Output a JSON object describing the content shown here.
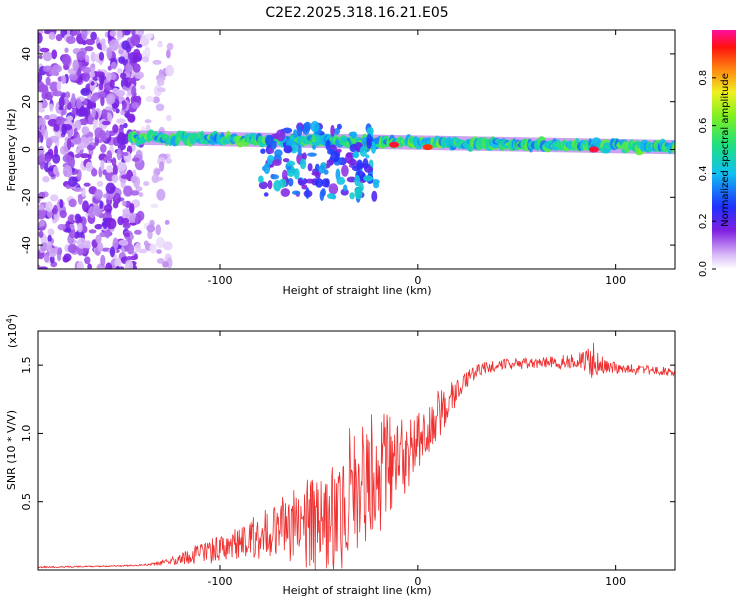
{
  "title": "C2E2.2025.318.16.21.E05",
  "colors": {
    "line": "#ee3030",
    "frame": "#000000",
    "spec_purple": "#7a2ae0",
    "spec_blue": "#2040ff",
    "spec_cyan": "#20d0e0",
    "spec_green": "#40e060",
    "spec_yellow": "#e0e020",
    "spec_red": "#ff2020"
  },
  "chart_data": [
    {
      "type": "heatmap",
      "title": "C2E2.2025.318.16.21.E05",
      "xlabel": "Height of straight line (km)",
      "ylabel": "Frequency (Hz)",
      "xlim": [
        -192,
        130
      ],
      "ylim": [
        -50,
        50
      ],
      "xticks": [
        -100,
        0,
        100
      ],
      "yticks": [
        -40,
        -20,
        0,
        20,
        40
      ],
      "colorbar": {
        "label": "Normalized spectral amplitude",
        "range": [
          0,
          1
        ],
        "ticks": [
          "0.0",
          "0.2",
          "0.4",
          "0.6",
          "0.8"
        ]
      },
      "features": [
        {
          "region": "noise",
          "x_range": [
            -192,
            -140
          ],
          "y_range": [
            -50,
            50
          ],
          "amplitude": 0.1
        },
        {
          "region": "sparse-noise",
          "x_range": [
            -140,
            -125
          ],
          "y_range": [
            -50,
            50
          ],
          "amplitude": 0.05
        },
        {
          "region": "carrier-band",
          "x_range": [
            -145,
            130
          ],
          "y_center_start": 5,
          "y_center_end": 1,
          "amplitude": 0.45
        },
        {
          "region": "scatter-zone",
          "x_range": [
            -80,
            -20
          ],
          "y_range": [
            -20,
            10
          ],
          "amplitude": 0.35
        },
        {
          "region": "peak",
          "x": -12,
          "y": 2,
          "amplitude": 0.95
        },
        {
          "region": "peak",
          "x": 5,
          "y": 1,
          "amplitude": 0.9
        },
        {
          "region": "peak",
          "x": 89,
          "y": 0,
          "amplitude": 0.95
        }
      ]
    },
    {
      "type": "line",
      "xlabel": "Height of straight line (km)",
      "ylabel": "SNR (10 * V/V)",
      "y_multiplier": "(x10^4)",
      "y_multiplier_base": "(x10",
      "y_multiplier_exp": "4",
      "y_multiplier_close": ")",
      "xlim": [
        -192,
        130
      ],
      "ylim": [
        0,
        17500
      ],
      "xticks": [
        -100,
        0,
        100
      ],
      "yticks": [
        5000,
        10000,
        15000
      ],
      "ytick_labels": [
        "0.5",
        "1.0",
        "1.5"
      ],
      "series": [
        {
          "name": "SNR",
          "x": [
            -192,
            -170,
            -150,
            -140,
            -130,
            -120,
            -110,
            -100,
            -90,
            -80,
            -70,
            -60,
            -50,
            -40,
            -35,
            -30,
            -25,
            -20,
            -15,
            -10,
            -5,
            0,
            5,
            10,
            15,
            20,
            25,
            30,
            40,
            50,
            60,
            70,
            80,
            85,
            88,
            90,
            92,
            95,
            100,
            110,
            120,
            130
          ],
          "values": [
            200,
            250,
            300,
            350,
            500,
            800,
            1200,
            1600,
            2000,
            2500,
            3000,
            3300,
            3800,
            4500,
            5500,
            6200,
            6800,
            7200,
            7800,
            8300,
            8800,
            9600,
            10300,
            11200,
            12300,
            13200,
            14000,
            14600,
            15000,
            15100,
            15200,
            15200,
            15300,
            15400,
            15300,
            15000,
            15000,
            14900,
            14800,
            14700,
            14600,
            14500
          ],
          "noise": [
            50,
            50,
            50,
            60,
            150,
            400,
            700,
            900,
            1200,
            1700,
            2300,
            2800,
            3600,
            4400,
            4600,
            4800,
            4800,
            4400,
            3800,
            3400,
            2800,
            2400,
            2200,
            2000,
            1600,
            1000,
            600,
            500,
            400,
            400,
            400,
            450,
            500,
            900,
            1500,
            1200,
            700,
            500,
            400,
            350,
            300,
            300
          ]
        }
      ]
    }
  ]
}
